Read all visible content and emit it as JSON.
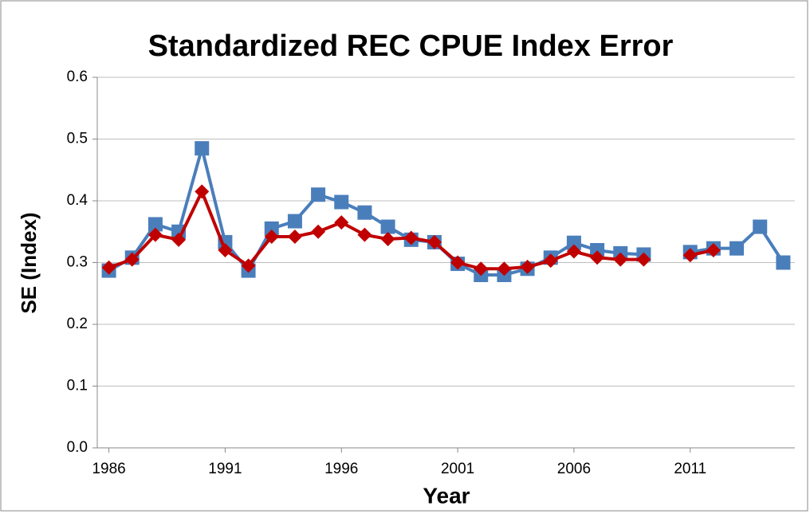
{
  "chart_data": {
    "type": "line",
    "title": "Standardized REC  CPUE Index Error",
    "x_label": "Year",
    "y_label": "SE (Index)",
    "categories": [
      1986,
      null,
      null,
      null,
      null,
      1991,
      null,
      null,
      null,
      null,
      1996,
      null,
      null,
      null,
      null,
      2001,
      null,
      null,
      null,
      null,
      2006,
      null,
      null,
      null,
      null,
      2011,
      null,
      null,
      null,
      null
    ],
    "series": [
      {
        "color": "#4a7ebb",
        "marker": "square",
        "values": [
          0.287,
          0.308,
          0.362,
          0.35,
          0.485,
          0.333,
          0.287,
          0.355,
          0.367,
          0.41,
          0.398,
          0.381,
          0.358,
          0.337,
          0.333,
          0.298,
          0.28,
          0.28,
          0.29,
          0.308,
          0.332,
          0.32,
          0.315,
          0.313,
          null,
          0.317,
          0.323,
          0.323,
          0.358,
          0.3
        ]
      },
      {
        "color": "#c00000",
        "marker": "diamond",
        "values": [
          0.292,
          0.305,
          0.345,
          0.337,
          0.415,
          0.32,
          0.295,
          0.342,
          0.342,
          0.35,
          0.365,
          0.345,
          0.338,
          0.34,
          0.333,
          0.3,
          0.29,
          0.29,
          0.293,
          0.303,
          0.318,
          0.308,
          0.305,
          0.305,
          null,
          0.312,
          0.32,
          null,
          null,
          null
        ]
      }
    ],
    "ylim": [
      0,
      0.6
    ],
    "yticks": [
      {
        "value": 0,
        "label": "0.0"
      },
      0.1,
      0.2,
      0.3,
      0.4,
      0.5,
      0.6
    ],
    "grid": true
  }
}
